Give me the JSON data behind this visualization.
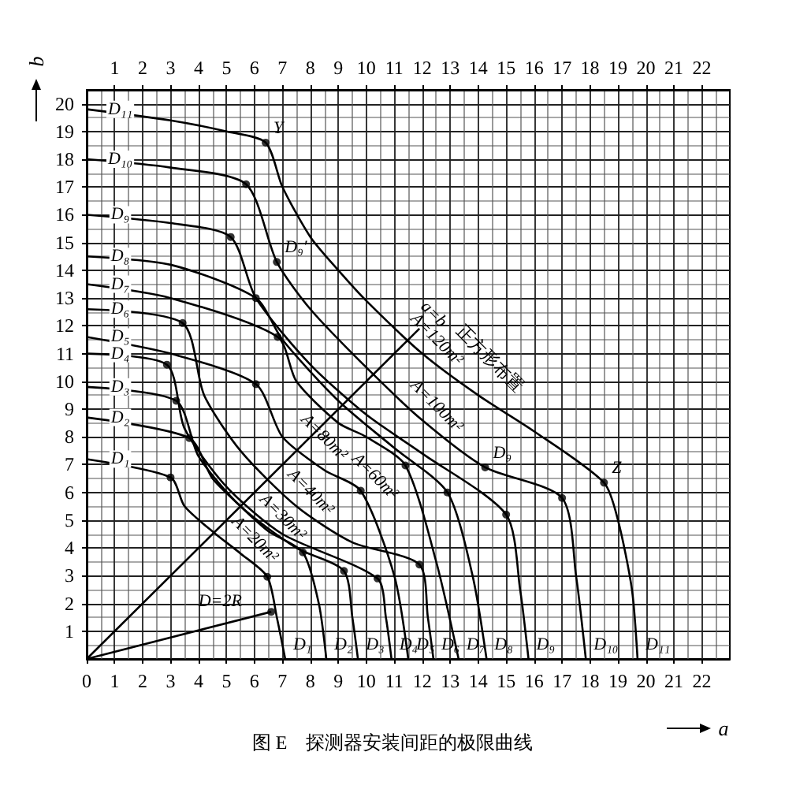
{
  "chart_data": {
    "type": "line",
    "title": "图 E　探测器安装间距的极限曲线",
    "xlabel": "a",
    "ylabel": "b",
    "xlim": [
      0,
      23
    ],
    "xticks": [
      0,
      1,
      2,
      3,
      4,
      5,
      6,
      7,
      8,
      9,
      10,
      11,
      12,
      13,
      14,
      15,
      16,
      17,
      18,
      19,
      20,
      21,
      22
    ],
    "x2lim": [
      0,
      23
    ],
    "x2ticks": [
      1,
      2,
      3,
      4,
      5,
      6,
      7,
      8,
      9,
      10,
      11,
      12,
      13,
      14,
      15,
      16,
      17,
      18,
      19,
      20,
      21,
      22
    ],
    "ylim": [
      0,
      20.5
    ],
    "yticks": [
      1,
      2,
      3,
      4,
      5,
      6,
      7,
      8,
      9,
      10,
      11,
      12,
      13,
      14,
      15,
      16,
      17,
      18,
      19,
      20
    ],
    "grid": true,
    "series": [
      {
        "name": "D₁",
        "color": "#000000",
        "x": [
          0,
          3,
          3.5,
          4.55,
          5.5,
          6.46,
          6.8,
          7.1
        ],
        "values": [
          7.2,
          6.54,
          5.5,
          4.55,
          3.8,
          2.96,
          1.5,
          0
        ]
      },
      {
        "name": "D₂",
        "color": "#000000",
        "x": [
          0,
          3.67,
          4.5,
          5.5,
          6.5,
          7.73,
          8.3,
          8.57
        ],
        "values": [
          8.7,
          7.96,
          6.5,
          5.5,
          4.6,
          3.84,
          2,
          0
        ]
      },
      {
        "name": "D₃",
        "color": "#000000",
        "x": [
          0,
          3.2,
          4,
          5.5,
          7.5,
          9.2,
          9.5,
          9.7
        ],
        "values": [
          9.8,
          9.3,
          7.3,
          5.5,
          4,
          3.17,
          1.5,
          0
        ]
      },
      {
        "name": "D₄",
        "color": "#000000",
        "x": [
          0,
          2.87,
          3.5,
          5,
          7,
          10.4,
          10.7,
          10.9
        ],
        "values": [
          11,
          10.6,
          8.3,
          6.2,
          4.5,
          2.9,
          1.5,
          0
        ]
      },
      {
        "name": "D₅",
        "color": "#000000",
        "x": [
          0,
          3,
          6.05,
          7,
          8.5,
          9.8,
          11,
          11.5
        ],
        "values": [
          11.6,
          11,
          9.9,
          8,
          6.8,
          6.06,
          3,
          0
        ]
      },
      {
        "name": "D₆",
        "color": "#000000",
        "x": [
          0,
          3.43,
          4.2,
          5.5,
          7.5,
          9.5,
          11.9,
          12.2,
          12.4
        ],
        "values": [
          12.6,
          12.1,
          9.5,
          7.5,
          5.5,
          4.2,
          3.4,
          1.5,
          0
        ]
      },
      {
        "name": "D₇",
        "color": "#000000",
        "x": [
          0,
          3,
          6.83,
          7.5,
          9,
          10,
          11.4,
          12.5,
          13.3
        ],
        "values": [
          13.5,
          13,
          11.6,
          10,
          8.5,
          8,
          6.97,
          3.5,
          0
        ]
      },
      {
        "name": "D₈",
        "color": "#000000",
        "x": [
          0,
          3,
          6.05,
          7,
          9,
          11,
          12.9,
          13.8,
          14.3
        ],
        "values": [
          14.5,
          14.2,
          13,
          11.5,
          9.3,
          7.6,
          6,
          3,
          0
        ]
      },
      {
        "name": "D₉",
        "color": "#000000",
        "x": [
          0,
          3,
          5.15,
          6.05,
          8,
          10,
          12,
          15,
          15.5,
          15.8
        ],
        "values": [
          16,
          15.7,
          15.2,
          13,
          10.6,
          8.8,
          7.4,
          5.2,
          2.5,
          0
        ]
      },
      {
        "name": "D₁₀",
        "color": "#000000",
        "x": [
          0,
          3,
          5.7,
          6.8,
          8,
          10,
          12,
          14.25,
          17,
          17.5,
          17.85
        ],
        "values": [
          18,
          17.7,
          17.1,
          14.3,
          12.6,
          10.5,
          8.6,
          6.9,
          5.8,
          3,
          0
        ]
      },
      {
        "name": "D₁₁",
        "color": "#000000",
        "x": [
          0,
          3,
          5,
          6.4,
          7,
          8,
          9,
          10,
          12,
          14,
          16,
          18.5,
          19,
          19.5,
          19.7
        ],
        "values": [
          19.8,
          19.4,
          19,
          18.6,
          17,
          15.2,
          14,
          12.9,
          11,
          9.5,
          8.2,
          6.35,
          5,
          2.5,
          0
        ]
      },
      {
        "color": "#000000",
        "x": [
          0,
          11.9
        ],
        "values": [
          0,
          11.9
        ]
      },
      {
        "color": "#000000",
        "x": [
          0,
          6.6
        ],
        "values": [
          0,
          1.7
        ]
      },
      {
        "type": "scatter",
        "color": "#000000",
        "x": [
          3,
          6.46,
          3.67,
          7.73,
          3.2,
          9.2,
          2.87,
          10.4,
          6.05,
          9.8,
          3.43,
          11.9,
          6.83,
          11.4,
          6.05,
          12.9,
          5.15,
          15,
          6.8,
          14.25,
          5.7,
          17,
          6.4,
          18.5,
          6.6
        ],
        "values": [
          6.54,
          2.96,
          7.96,
          3.84,
          9.3,
          3.17,
          10.6,
          2.9,
          9.9,
          6.06,
          12.1,
          3.4,
          11.6,
          6.97,
          13,
          6,
          15.2,
          5.2,
          14.3,
          6.9,
          17.1,
          5.8,
          18.6,
          6.35,
          1.7
        ]
      }
    ],
    "annotations": [
      {
        "text": "A=20m²",
        "x": 5.5,
        "y": 3.8
      },
      {
        "text": "A=30m²",
        "x": 6.5,
        "y": 4.6
      },
      {
        "text": "A=40m²",
        "x": 7.5,
        "y": 5.5
      },
      {
        "text": "A=60m²",
        "x": 9.8,
        "y": 6.06
      },
      {
        "text": "A=80m²",
        "x": 9,
        "y": 8.5
      },
      {
        "text": "A=100m²",
        "x": 12,
        "y": 8.6
      },
      {
        "text": "A=120m²",
        "x": 12,
        "y": 11
      },
      "正方形布置",
      {
        "text": "a=b",
        "x": 11.9,
        "y": 11.9
      },
      {
        "text": "Y",
        "x": 6.4,
        "y": 18.6
      },
      {
        "text": "Z",
        "x": 18.5,
        "y": 6.35
      },
      {
        "text": "D₉′",
        "x": 6.8,
        "y": 14.3
      },
      {
        "text": "D₉",
        "x": 14.25,
        "y": 6.9
      },
      {
        "text": "D=2R",
        "x": 6.0,
        "y": 1.55
      },
      {
        "text": "D₁",
        "x": 7.1,
        "y": 0
      },
      {
        "text": "D₂",
        "x": 8.57,
        "y": 0
      },
      {
        "text": "D₃",
        "x": 9.7,
        "y": 0
      },
      {
        "text": "D₄",
        "x": 10.9,
        "y": 0
      },
      {
        "text": "D₅",
        "x": 11.5,
        "y": 0
      },
      {
        "text": "D₆",
        "x": 12.4,
        "y": 0
      },
      {
        "text": "D₇",
        "x": 13.3,
        "y": 0
      },
      {
        "text": "D₈",
        "x": 14.3,
        "y": 0
      },
      {
        "text": "D₉",
        "x": 15.8,
        "y": 0
      },
      {
        "text": "D₁₀",
        "x": 17.85,
        "y": 0
      },
      {
        "text": "D₁₁",
        "x": 19.7,
        "y": 0
      }
    ]
  }
}
